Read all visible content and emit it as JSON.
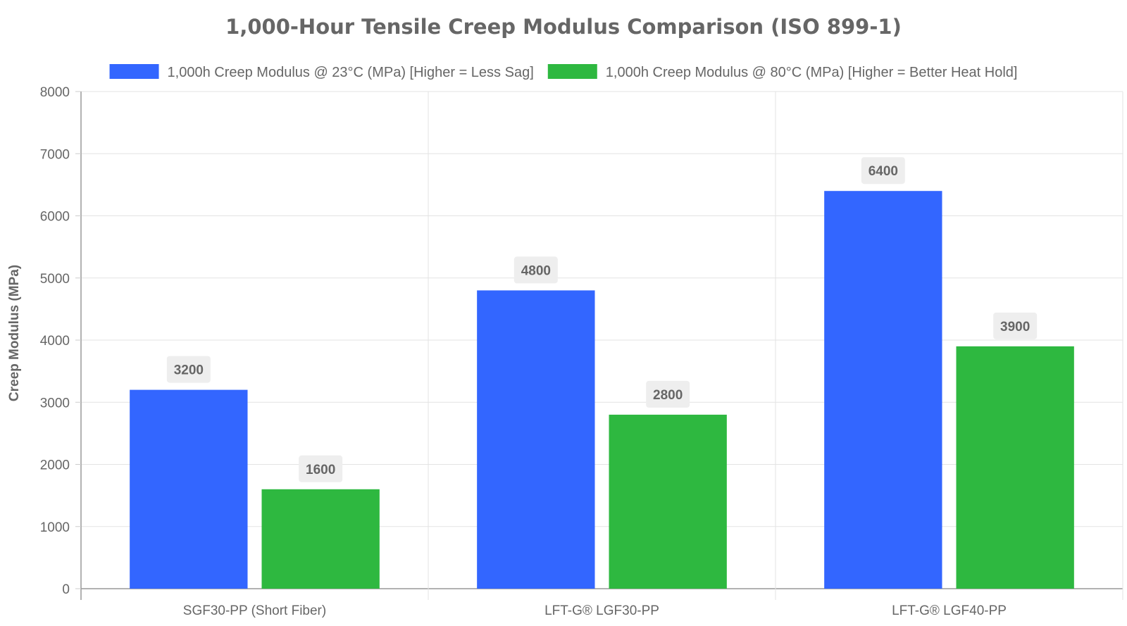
{
  "chart_data": {
    "type": "bar",
    "title": "1,000-Hour Tensile Creep Modulus Comparison (ISO 899-1)",
    "ylabel": "Creep Modulus (MPa)",
    "xlabel": "",
    "ylim": [
      0,
      8000
    ],
    "yticks": [
      0,
      1000,
      2000,
      3000,
      4000,
      5000,
      6000,
      7000,
      8000
    ],
    "categories": [
      "SGF30-PP (Short Fiber)",
      "LFT-G® LGF30-PP",
      "LFT-G® LGF40-PP"
    ],
    "series": [
      {
        "name": "1,000h Creep Modulus @ 23°C (MPa) [Higher = Less Sag]",
        "values": [
          3200,
          4800,
          6400
        ],
        "color": "#3366FF"
      },
      {
        "name": "1,000h Creep Modulus @ 80°C (MPa) [Higher = Better Heat Hold]",
        "values": [
          1600,
          2800,
          3900
        ],
        "color": "#2EB840"
      }
    ],
    "grid": true,
    "legend_position": "top",
    "data_labels": true
  }
}
